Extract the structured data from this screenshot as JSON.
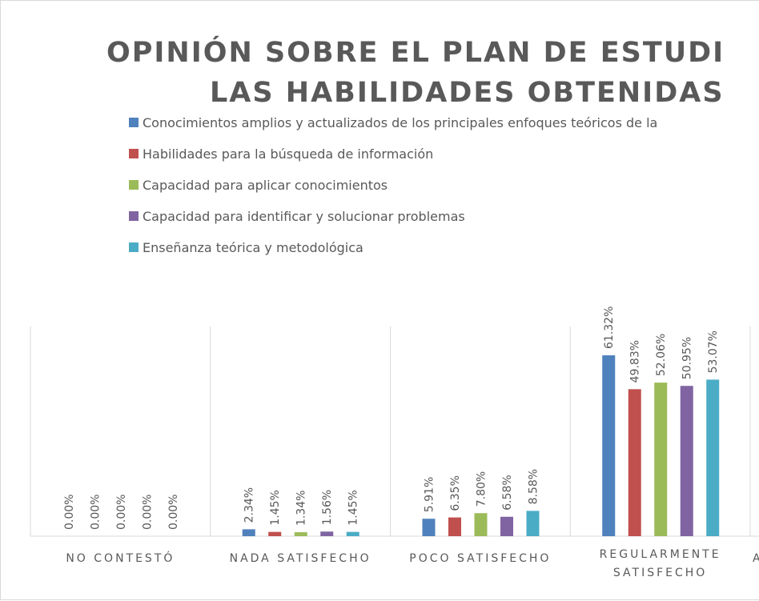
{
  "chart_data": {
    "type": "bar",
    "title": [
      "OPINIÓN SOBRE EL PLAN DE ESTUDI",
      "LAS HABILIDADES OBTENIDAS"
    ],
    "categories": [
      "NO CONTESTÓ",
      "NADA SATISFECHO",
      "POCO SATISFECHO",
      "REGULARMENTE SATISFECHO",
      "A"
    ],
    "series": [
      {
        "name": "Conocimientos amplios y actualizados de los principales enfoques teóricos de la",
        "color": "#4f81bd",
        "values": [
          0,
          2.34,
          5.91,
          61.32,
          null
        ]
      },
      {
        "name": "Habilidades para la búsqueda de información",
        "color": "#c0504d",
        "values": [
          0,
          1.45,
          6.35,
          49.83,
          null
        ]
      },
      {
        "name": "Capacidad para aplicar conocimientos",
        "color": "#9bbb59",
        "values": [
          0,
          1.34,
          7.8,
          52.06,
          null
        ]
      },
      {
        "name": "Capacidad para identificar y solucionar problemas",
        "color": "#8064a2",
        "values": [
          0,
          1.56,
          6.58,
          50.95,
          null
        ]
      },
      {
        "name": "Enseñanza teórica y metodológica",
        "color": "#4bacc6",
        "values": [
          0,
          1.45,
          8.58,
          53.07,
          null
        ]
      }
    ],
    "value_labels": [
      [
        "0.00%",
        "2.34%",
        "5.91%",
        "61.32%",
        null
      ],
      [
        "0.00%",
        "1.45%",
        "6.35%",
        "49.83%",
        null
      ],
      [
        "0.00%",
        "1.34%",
        "7.80%",
        "52.06%",
        null
      ],
      [
        "0.00%",
        "1.56%",
        "6.58%",
        "50.95%",
        null
      ],
      [
        "0.00%",
        "1.45%",
        "8.58%",
        "53.07%",
        null
      ]
    ],
    "ylim": [
      0,
      70
    ],
    "legend": "top"
  }
}
